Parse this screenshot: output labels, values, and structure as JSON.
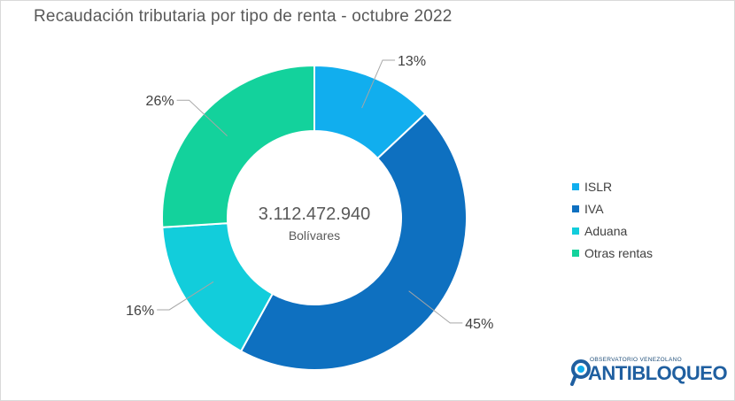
{
  "chart_data": {
    "type": "pie",
    "title": "Recaudación tributaria por tipo de renta - octubre 2022",
    "center_value": "3.112.472.940",
    "center_unit": "Bolívares",
    "slices": [
      {
        "name": "ISLR",
        "value": 13,
        "label": "13%",
        "color": "#11aeee"
      },
      {
        "name": "IVA",
        "value": 45,
        "label": "45%",
        "color": "#0e70c0"
      },
      {
        "name": "Aduana",
        "value": 16,
        "label": "16%",
        "color": "#12cddb"
      },
      {
        "name": "Otras rentas",
        "value": 26,
        "label": "26%",
        "color": "#13d29c"
      }
    ],
    "legend_position": "right"
  },
  "logo": {
    "small_text": "OBSERVATORIO VENEZOLANO",
    "big_text": "ANTIBLOQUEO"
  }
}
